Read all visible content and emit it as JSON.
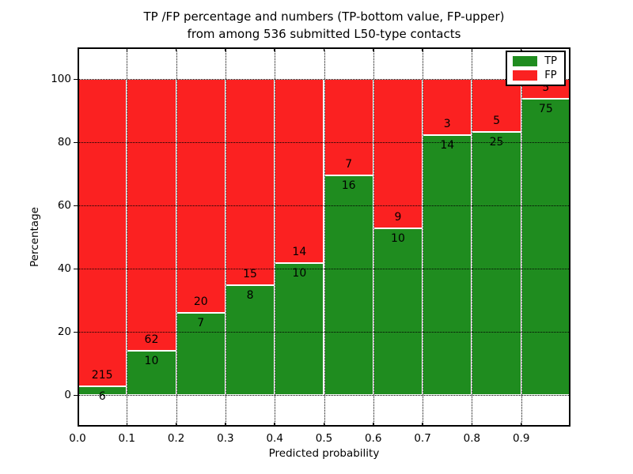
{
  "figure": {
    "title_line1": "TP /FP percentage and numbers (TP-bottom value, FP-upper)",
    "title_line2": "from among 536 submitted L50-type contacts",
    "xlabel": "Predicted probability",
    "ylabel": "Percentage"
  },
  "chart_data": {
    "type": "bar",
    "stacked": true,
    "normalized_to": "100% per bin (TP% bottom, FP% top)",
    "title": "TP /FP percentage and numbers (TP-bottom value, FP-upper) from among 536 submitted L50-type contacts",
    "xlabel": "Predicted probability",
    "ylabel": "Percentage",
    "total_submitted_contacts": 536,
    "categories": [
      "0.0-0.1",
      "0.1-0.2",
      "0.2-0.3",
      "0.3-0.4",
      "0.4-0.5",
      "0.5-0.6",
      "0.6-0.7",
      "0.7-0.8",
      "0.8-0.9",
      "0.9-1.0"
    ],
    "series": [
      {
        "name": "TP",
        "color": "#1f8c1f",
        "counts": [
          6,
          10,
          7,
          8,
          10,
          16,
          10,
          14,
          25,
          75
        ]
      },
      {
        "name": "FP",
        "color": "#fb2121",
        "counts": [
          215,
          62,
          20,
          15,
          14,
          7,
          9,
          3,
          5,
          5
        ]
      }
    ],
    "tp_percent_per_bin": [
      2.71,
      13.89,
      25.93,
      34.78,
      41.67,
      69.57,
      52.63,
      82.35,
      83.33,
      93.75
    ],
    "x_tick_labels": [
      "0.0",
      "0.1",
      "0.2",
      "0.3",
      "0.4",
      "0.5",
      "0.6",
      "0.7",
      "0.8",
      "0.9"
    ],
    "y_ticks": [
      0,
      20,
      40,
      60,
      80,
      100
    ],
    "xlim": [
      0.0,
      1.0
    ],
    "ylim": [
      -10,
      110
    ],
    "grid": {
      "on": true,
      "style": "dotted",
      "color": "#000000"
    },
    "legend": {
      "position": "upper-right",
      "items": [
        {
          "label": "TP",
          "color": "#1f8c1f"
        },
        {
          "label": "FP",
          "color": "#fb2121"
        }
      ]
    }
  }
}
